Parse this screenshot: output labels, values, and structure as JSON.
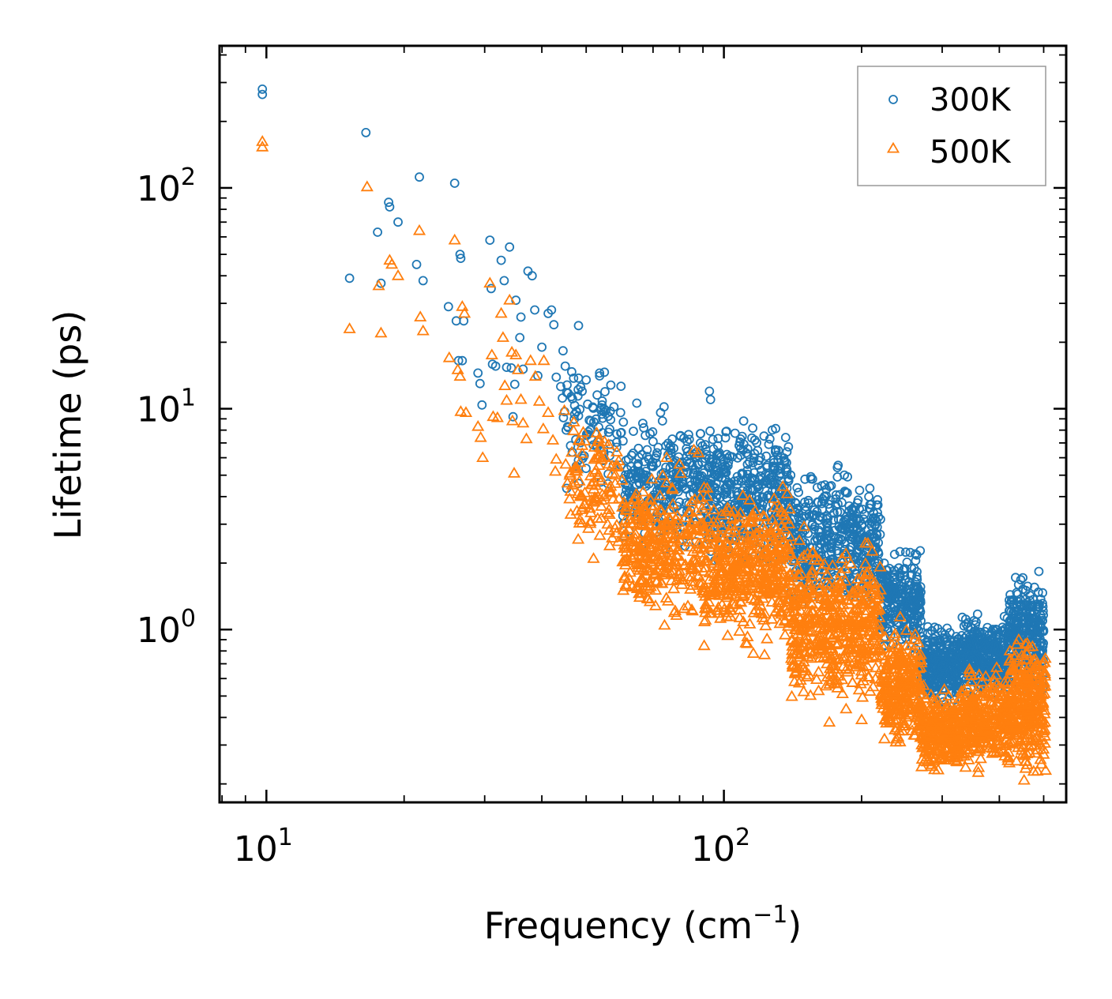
{
  "chart_data": {
    "type": "scatter",
    "title": "",
    "xlabel": "Frequency (cm",
    "xlabel_sup": "−1",
    "xlabel_close": ")",
    "ylabel": "Lifetime (ps)",
    "xscale": "log",
    "yscale": "log",
    "xlim": [
      7.9,
      560
    ],
    "ylim": [
      0.165,
      440
    ],
    "x_ticks": [
      {
        "value": 10,
        "base": "10",
        "exp": "1"
      },
      {
        "value": 100,
        "base": "10",
        "exp": "2"
      }
    ],
    "y_ticks": [
      {
        "value": 1,
        "base": "10",
        "exp": "0"
      },
      {
        "value": 10,
        "base": "10",
        "exp": "1"
      },
      {
        "value": 100,
        "base": "10",
        "exp": "2"
      }
    ],
    "legend_position": "top-right",
    "series": [
      {
        "name": "300K",
        "marker": "circle",
        "color": "#1f77b4",
        "points": [
          [
            9.8,
            280
          ],
          [
            9.8,
            265
          ],
          [
            15.2,
            39
          ],
          [
            16.5,
            178
          ],
          [
            17.5,
            63
          ],
          [
            17.8,
            37
          ],
          [
            18.5,
            86
          ],
          [
            18.6,
            82
          ],
          [
            19.4,
            70
          ],
          [
            21.3,
            45
          ],
          [
            21.6,
            112
          ],
          [
            22.0,
            38
          ],
          [
            25.8,
            105
          ],
          [
            25.0,
            29
          ],
          [
            26.0,
            25
          ],
          [
            26.3,
            16.5
          ],
          [
            26.5,
            50
          ],
          [
            26.6,
            48
          ],
          [
            26.8,
            16.5
          ],
          [
            27.0,
            25
          ],
          [
            29.0,
            14.5
          ],
          [
            29.3,
            13
          ],
          [
            29.6,
            10.4
          ],
          [
            30.8,
            58
          ],
          [
            31.0,
            35
          ],
          [
            31.2,
            15.9
          ],
          [
            31.7,
            15.6
          ],
          [
            32.6,
            47
          ],
          [
            33.1,
            38
          ],
          [
            33.5,
            15.4
          ],
          [
            34.0,
            54
          ],
          [
            34.3,
            15.3
          ],
          [
            34.6,
            9.2
          ],
          [
            34.9,
            12.9
          ],
          [
            35.1,
            31
          ],
          [
            35.8,
            21
          ],
          [
            36.0,
            26
          ],
          [
            36.4,
            15.1
          ],
          [
            37.3,
            42
          ],
          [
            38.1,
            40
          ],
          [
            38.6,
            28
          ],
          [
            39.2,
            14.1
          ],
          [
            40.0,
            19
          ],
          [
            41.3,
            27
          ],
          [
            42.0,
            28
          ],
          [
            42.5,
            24
          ],
          [
            43.0,
            13.9
          ],
          [
            44.0,
            12.6
          ],
          [
            44.5,
            18.3
          ],
          [
            45.0,
            15.6
          ],
          [
            46.5,
            14.7
          ],
          [
            48.1,
            23.8
          ],
          [
            49.0,
            12
          ],
          [
            50.0,
            13.5
          ],
          [
            53.5,
            14.5
          ],
          [
            55.2,
            9.8
          ],
          [
            56.6,
            12.8
          ],
          [
            57.5,
            10.2
          ],
          [
            60.3,
            8.7
          ],
          [
            64.5,
            10.6
          ],
          [
            66.8,
            8.2
          ],
          [
            70.0,
            7.1
          ],
          [
            72.7,
            9.6
          ],
          [
            74.0,
            10.2
          ],
          [
            76.5,
            6.8
          ],
          [
            83.3,
            6.4
          ],
          [
            93.0,
            12
          ],
          [
            93.5,
            11
          ],
          [
            97.0,
            6.8
          ],
          [
            103.0,
            6.1
          ],
          [
            110.6,
            6.9
          ],
          [
            115.8,
            5.7
          ],
          [
            120.2,
            6.0
          ],
          [
            130.0,
            6.5
          ],
          [
            140.0,
            5.0
          ],
          [
            151.0,
            3.6
          ],
          [
            160.0,
            4.4
          ],
          [
            262.0,
            2.2
          ],
          [
            262.5,
            2.05
          ],
          [
            434.0,
            1.72
          ],
          [
            500.0,
            0.55
          ]
        ],
        "bands": [
          {
            "xmin": 44,
            "xmax": 60,
            "ymid": 8.0,
            "spread": 1.6,
            "n": 90
          },
          {
            "xmin": 60,
            "xmax": 90,
            "ymid": 4.6,
            "spread": 1.6,
            "n": 280
          },
          {
            "xmin": 90,
            "xmax": 140,
            "ymid": 4.0,
            "spread": 1.7,
            "n": 420
          },
          {
            "xmin": 140,
            "xmax": 220,
            "ymid": 2.5,
            "spread": 1.7,
            "n": 460
          },
          {
            "xmin": 220,
            "xmax": 270,
            "ymid": 1.35,
            "spread": 1.45,
            "n": 260
          },
          {
            "xmin": 270,
            "xmax": 330,
            "ymid": 0.7,
            "spread": 1.35,
            "n": 280
          },
          {
            "xmin": 330,
            "xmax": 420,
            "ymid": 0.75,
            "spread": 1.35,
            "n": 320
          },
          {
            "xmin": 420,
            "xmax": 500,
            "ymid": 0.95,
            "spread": 1.6,
            "n": 300
          }
        ]
      },
      {
        "name": "500K",
        "marker": "triangle",
        "color": "#ff7f0e",
        "points": [
          [
            9.8,
            162
          ],
          [
            9.8,
            153
          ],
          [
            15.2,
            23
          ],
          [
            16.6,
            101
          ],
          [
            17.6,
            36
          ],
          [
            17.8,
            22
          ],
          [
            18.6,
            47
          ],
          [
            18.8,
            45
          ],
          [
            19.4,
            40
          ],
          [
            21.6,
            64
          ],
          [
            21.7,
            26
          ],
          [
            22.0,
            22.5
          ],
          [
            25.1,
            17
          ],
          [
            25.8,
            58
          ],
          [
            26.2,
            15
          ],
          [
            26.5,
            14
          ],
          [
            26.6,
            9.7
          ],
          [
            26.8,
            29
          ],
          [
            27.1,
            27
          ],
          [
            27.3,
            9.6
          ],
          [
            29.0,
            8.3
          ],
          [
            29.4,
            7.4
          ],
          [
            29.7,
            6.0
          ],
          [
            30.8,
            37
          ],
          [
            31.1,
            17.5
          ],
          [
            31.3,
            9.2
          ],
          [
            32.0,
            9.1
          ],
          [
            32.6,
            27
          ],
          [
            32.9,
            21
          ],
          [
            33.2,
            12.7
          ],
          [
            33.5,
            10.9
          ],
          [
            34.0,
            31
          ],
          [
            34.4,
            18
          ],
          [
            34.5,
            8.8
          ],
          [
            34.8,
            5.1
          ],
          [
            35.1,
            17.5
          ],
          [
            35.5,
            15
          ],
          [
            36.0,
            11
          ],
          [
            36.4,
            8.6
          ],
          [
            37.0,
            7.3
          ],
          [
            37.8,
            16.5
          ],
          [
            38.7,
            14
          ],
          [
            39.5,
            10.8
          ],
          [
            40.3,
            8.1
          ],
          [
            40.4,
            16.5
          ],
          [
            41.3,
            9.6
          ],
          [
            42.3,
            7.2
          ],
          [
            42.8,
            5.2
          ],
          [
            43.0,
            5.9
          ],
          [
            44.8,
            9.8
          ],
          [
            45.1,
            5.6
          ],
          [
            45.5,
            4.6
          ],
          [
            46.0,
            3.9
          ],
          [
            47.0,
            8.7
          ],
          [
            49.0,
            6.8
          ],
          [
            55.0,
            6.0
          ],
          [
            57.0,
            5.5
          ],
          [
            66.6,
            4.2
          ],
          [
            75.0,
            6.0
          ],
          [
            80.0,
            5.6
          ],
          [
            86.0,
            6.5
          ],
          [
            88.0,
            6.3
          ],
          [
            170.0,
            0.38
          ],
          [
            200.0,
            0.39
          ],
          [
            262.0,
            0.95
          ],
          [
            289.0,
            0.34
          ],
          [
            360.0,
            0.28
          ],
          [
            432.0,
            0.65
          ],
          [
            505.0,
            0.23
          ]
        ],
        "bands": [
          {
            "xmin": 46,
            "xmax": 60,
            "ymid": 4.4,
            "spread": 1.7,
            "n": 110
          },
          {
            "xmin": 60,
            "xmax": 90,
            "ymid": 2.3,
            "spread": 1.7,
            "n": 320
          },
          {
            "xmin": 90,
            "xmax": 140,
            "ymid": 1.9,
            "spread": 1.75,
            "n": 460
          },
          {
            "xmin": 140,
            "xmax": 220,
            "ymid": 1.05,
            "spread": 1.85,
            "n": 520
          },
          {
            "xmin": 220,
            "xmax": 270,
            "ymid": 0.55,
            "spread": 1.55,
            "n": 280
          },
          {
            "xmin": 270,
            "xmax": 330,
            "ymid": 0.35,
            "spread": 1.35,
            "n": 260
          },
          {
            "xmin": 330,
            "xmax": 420,
            "ymid": 0.38,
            "spread": 1.45,
            "n": 300
          },
          {
            "xmin": 420,
            "xmax": 505,
            "ymid": 0.45,
            "spread": 1.65,
            "n": 300
          }
        ]
      }
    ]
  }
}
